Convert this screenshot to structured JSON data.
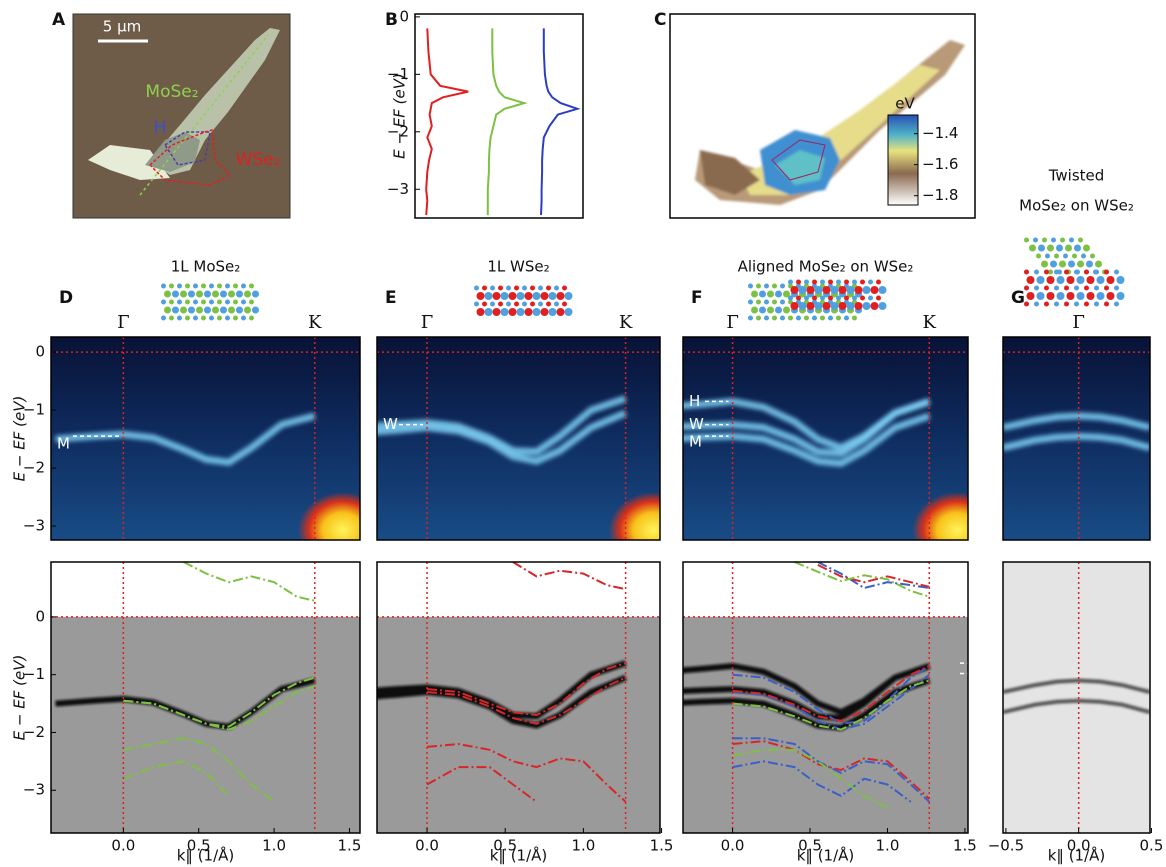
{
  "chart_data": [
    {
      "type": "image",
      "panel": "A",
      "scale_bar": "5 µm",
      "labels": [
        {
          "text": "MoSe₂",
          "color": "#8fd14f"
        },
        {
          "text": "H",
          "color": "#3b4fd0"
        },
        {
          "text": "WSe₂",
          "color": "#e02020"
        }
      ]
    },
    {
      "type": "line",
      "panel": "B",
      "ylabel": "E − EF (eV)",
      "ylim": [
        -3.5,
        0.05
      ],
      "yticks": [
        0,
        {
          "value": -1,
          "label": "−1"
        },
        {
          "value": -2,
          "label": "−2"
        },
        {
          "value": -3,
          "label": "−3"
        }
      ],
      "xlim": [
        0,
        3
      ],
      "energies": [
        -0.2,
        -0.6,
        -1.0,
        -1.2,
        -1.3,
        -1.4,
        -1.5,
        -1.6,
        -1.7,
        -1.9,
        -2.1,
        -2.3,
        -2.5,
        -2.7,
        -3.0,
        -3.2,
        -3.45
      ],
      "series": [
        {
          "color": "#e02020",
          "values": [
            0.22,
            0.24,
            0.28,
            0.45,
            0.95,
            0.5,
            0.3,
            0.28,
            0.26,
            0.3,
            0.22,
            0.3,
            0.25,
            0.22,
            0.2,
            0.22,
            0.2
          ]
        },
        {
          "color": "#7dc142",
          "values": [
            1.38,
            1.38,
            1.4,
            1.45,
            1.5,
            1.6,
            1.95,
            1.6,
            1.45,
            1.4,
            1.35,
            1.33,
            1.32,
            1.32,
            1.3,
            1.3,
            1.3
          ]
        },
        {
          "color": "#2a3fc0",
          "values": [
            2.3,
            2.3,
            2.32,
            2.35,
            2.38,
            2.45,
            2.6,
            2.9,
            2.55,
            2.4,
            2.3,
            2.28,
            2.27,
            2.27,
            2.26,
            2.26,
            2.25
          ]
        }
      ]
    },
    {
      "type": "map",
      "panel": "C",
      "colorbar_label": "eV",
      "clim": [
        -1.86,
        -1.28
      ],
      "cticks": [
        {
          "value": -1.4,
          "label": "−1.4"
        },
        {
          "value": -1.6,
          "label": "−1.6"
        },
        {
          "value": -1.8,
          "label": "−1.8"
        }
      ]
    },
    {
      "type": "arpes",
      "panel": "D",
      "title": [
        "1L MoSe₂"
      ],
      "xlabel": "k‖ (1/Å)",
      "ylabel": "E − EF (eV)",
      "xlim": [
        -0.48,
        1.57
      ],
      "xticks": [
        {
          "value": 0,
          "label": "0.0"
        },
        {
          "value": 0.5,
          "label": "0.5"
        },
        {
          "value": 1,
          "label": "1.0"
        },
        {
          "value": 1.5,
          "label": "1.5"
        }
      ],
      "high_symmetry": [
        {
          "label": "Γ",
          "value": 0
        },
        {
          "label": "K",
          "value": 1.27
        }
      ],
      "fermi_level": 0,
      "upper": {
        "ylim": [
          -3.24,
          0.26
        ],
        "yticks": [
          0,
          {
            "value": -1,
            "label": "−1"
          },
          {
            "value": -2,
            "label": "−2"
          },
          {
            "value": -3,
            "label": "−3"
          }
        ],
        "x": [
          -0.45,
          -0.2,
          0,
          0.2,
          0.4,
          0.55,
          0.7,
          0.85,
          1.05,
          1.27
        ],
        "bands": [
          [
            -1.5,
            -1.45,
            -1.42,
            -1.48,
            -1.68,
            -1.85,
            -1.9,
            -1.65,
            -1.25,
            -1.1
          ]
        ],
        "band_markers": [
          {
            "label": "M",
            "value": -1.45
          }
        ]
      },
      "lower": {
        "ylim": [
          -3.74,
          0.95
        ],
        "yticks": [
          0,
          {
            "value": -1,
            "label": "−1"
          },
          {
            "value": -2,
            "label": "−2"
          },
          {
            "value": -3,
            "label": "−3"
          }
        ],
        "x": [
          0,
          0.2,
          0.4,
          0.55,
          0.7,
          0.85,
          1.0,
          1.15,
          1.27
        ],
        "series": [
          {
            "color": "#7dc142",
            "values": [
              null,
              null,
              0.95,
              0.75,
              0.6,
              0.7,
              0.6,
              0.35,
              0.28
            ]
          },
          {
            "color": "#7dc142",
            "values": [
              -1.45,
              -1.5,
              -1.7,
              -1.85,
              -1.9,
              -1.65,
              -1.35,
              -1.15,
              -1.05
            ]
          },
          {
            "color": "#7dc142",
            "values": [
              -1.45,
              -1.5,
              -1.7,
              -1.85,
              -1.95,
              -1.8,
              -1.55,
              -1.3,
              -1.2
            ]
          },
          {
            "color": "#7dc142",
            "values": [
              -2.3,
              -2.2,
              -2.1,
              -2.2,
              -2.5,
              -2.9,
              -3.2,
              null,
              null
            ]
          },
          {
            "color": "#7dc142",
            "values": [
              -2.8,
              -2.6,
              -2.5,
              -2.7,
              -3.1,
              null,
              null,
              null,
              null
            ]
          }
        ]
      }
    },
    {
      "type": "arpes",
      "panel": "E",
      "title": [
        "1L WSe₂"
      ],
      "xlabel": "k‖ (1/Å)",
      "xlim": [
        -0.32,
        1.49
      ],
      "xticks": [
        {
          "value": 0,
          "label": "0.0"
        },
        {
          "value": 0.5,
          "label": "0.5"
        },
        {
          "value": 1,
          "label": "1.0"
        },
        {
          "value": 1.5,
          "label": "1.5"
        }
      ],
      "high_symmetry": [
        {
          "label": "Γ",
          "value": 0
        },
        {
          "label": "K",
          "value": 1.27
        }
      ],
      "fermi_level": 0,
      "upper": {
        "ylim": [
          -3.24,
          0.26
        ],
        "x": [
          -0.45,
          -0.2,
          0,
          0.2,
          0.4,
          0.55,
          0.7,
          0.85,
          1.05,
          1.27
        ],
        "bands": [
          [
            -1.3,
            -1.25,
            -1.22,
            -1.28,
            -1.48,
            -1.7,
            -1.72,
            -1.45,
            -1.0,
            -0.8
          ],
          [
            -1.4,
            -1.35,
            -1.3,
            -1.36,
            -1.55,
            -1.8,
            -1.88,
            -1.7,
            -1.3,
            -1.05
          ]
        ],
        "band_markers": [
          {
            "label": "W",
            "value": -1.25
          }
        ]
      },
      "lower": {
        "ylim": [
          -3.74,
          0.95
        ],
        "x": [
          0,
          0.2,
          0.4,
          0.55,
          0.7,
          0.85,
          1.0,
          1.15,
          1.27
        ],
        "series": [
          {
            "color": "#d62728",
            "values": [
              null,
              null,
              null,
              0.95,
              0.7,
              0.8,
              0.75,
              0.55,
              0.48
            ]
          },
          {
            "color": "#d62728",
            "values": [
              -1.25,
              -1.3,
              -1.5,
              -1.65,
              -1.7,
              -1.5,
              -1.15,
              -0.9,
              -0.8
            ]
          },
          {
            "color": "#d62728",
            "values": [
              -1.3,
              -1.35,
              -1.55,
              -1.75,
              -1.85,
              -1.7,
              -1.45,
              -1.2,
              -1.05
            ]
          },
          {
            "color": "#d62728",
            "values": [
              -2.25,
              -2.2,
              -2.3,
              -2.5,
              -2.6,
              -2.45,
              -2.5,
              -2.9,
              -3.2
            ]
          },
          {
            "color": "#d62728",
            "values": [
              -2.9,
              -2.6,
              -2.6,
              -2.9,
              -3.2,
              null,
              null,
              null,
              null
            ]
          }
        ]
      }
    },
    {
      "type": "arpes",
      "panel": "F",
      "title": [
        "Aligned MoSe₂ on WSe₂"
      ],
      "xlabel": "k‖ (1/Å)",
      "xlim": [
        -0.32,
        1.52
      ],
      "xticks": [
        {
          "value": 0,
          "label": "0.0"
        },
        {
          "value": 0.5,
          "label": "0.5"
        },
        {
          "value": 1,
          "label": "1.0"
        },
        {
          "value": 1.5,
          "label": "1.5"
        }
      ],
      "high_symmetry": [
        {
          "label": "Γ",
          "value": 0
        },
        {
          "label": "K",
          "value": 1.27
        }
      ],
      "fermi_level": 0,
      "upper": {
        "ylim": [
          -3.24,
          0.26
        ],
        "x": [
          -0.45,
          -0.2,
          0,
          0.2,
          0.4,
          0.55,
          0.7,
          0.85,
          1.05,
          1.27
        ],
        "bands": [
          [
            -0.95,
            -0.9,
            -0.85,
            -0.95,
            -1.2,
            -1.5,
            -1.65,
            -1.45,
            -1.05,
            -0.85
          ],
          [
            -1.3,
            -1.27,
            -1.25,
            -1.3,
            -1.5,
            -1.72,
            -1.75,
            -1.5,
            -1.05,
            -0.85
          ],
          [
            -1.5,
            -1.47,
            -1.45,
            -1.5,
            -1.7,
            -1.88,
            -1.92,
            -1.7,
            -1.3,
            -1.1
          ]
        ],
        "band_markers": [
          {
            "label": "H",
            "value": -0.85
          },
          {
            "label": "W",
            "value": -1.25
          },
          {
            "label": "M",
            "value": -1.45
          }
        ]
      },
      "lower": {
        "ylim": [
          -3.74,
          0.95
        ],
        "x": [
          0,
          0.2,
          0.4,
          0.55,
          0.7,
          0.85,
          1.0,
          1.15,
          1.27
        ],
        "markers": [
          -0.8,
          -0.98
        ],
        "series": [
          {
            "color": "#3a5fc8",
            "values": [
              null,
              null,
              null,
              0.95,
              0.75,
              0.5,
              0.6,
              0.55,
              0.5
            ]
          },
          {
            "color": "#3a5fc8",
            "values": [
              -1.0,
              -1.05,
              -1.3,
              -1.6,
              -1.85,
              -1.8,
              -1.45,
              -1.05,
              -0.85
            ]
          },
          {
            "color": "#3a5fc8",
            "values": [
              -1.3,
              -1.35,
              -1.55,
              -1.8,
              -1.95,
              -1.85,
              -1.55,
              -1.25,
              -1.0
            ]
          },
          {
            "color": "#3a5fc8",
            "values": [
              -2.1,
              -2.1,
              -2.2,
              -2.5,
              -2.7,
              -2.5,
              -2.55,
              -2.9,
              -3.2
            ]
          },
          {
            "color": "#3a5fc8",
            "values": [
              -2.6,
              -2.5,
              -2.6,
              -2.9,
              -3.1,
              -2.8,
              -2.9,
              -3.2,
              null
            ]
          },
          {
            "color": "#d62728",
            "values": [
              null,
              null,
              null,
              0.9,
              0.7,
              0.6,
              0.7,
              0.6,
              0.52
            ]
          },
          {
            "color": "#d62728",
            "values": [
              -1.28,
              -1.33,
              -1.52,
              -1.72,
              -1.8,
              -1.62,
              -1.3,
              -1.0,
              -0.85
            ]
          },
          {
            "color": "#d62728",
            "values": [
              -2.2,
              -2.15,
              -2.3,
              -2.55,
              -2.65,
              -2.45,
              -2.5,
              -2.85,
              -3.15
            ]
          },
          {
            "color": "#7dc142",
            "values": [
              null,
              null,
              0.95,
              0.78,
              0.62,
              0.72,
              0.65,
              0.45,
              0.35
            ]
          },
          {
            "color": "#7dc142",
            "values": [
              -1.5,
              -1.55,
              -1.72,
              -1.88,
              -1.95,
              -1.75,
              -1.45,
              -1.2,
              -1.1
            ]
          },
          {
            "color": "#7dc142",
            "values": [
              -2.4,
              -2.3,
              -2.3,
              -2.5,
              -2.8,
              -3.1,
              -3.3,
              null,
              null
            ]
          }
        ]
      }
    },
    {
      "type": "arpes",
      "panel": "G",
      "title": [
        "Twisted",
        "MoSe₂ on WSe₂"
      ],
      "xlabel": "k‖ (1/Å)",
      "xlim": [
        -0.52,
        0.49
      ],
      "xticks": [
        {
          "value": -0.5,
          "label": "−0.5"
        },
        {
          "value": 0,
          "label": "0.0"
        },
        {
          "value": 0.5,
          "label": "0.5"
        }
      ],
      "high_symmetry": [
        {
          "label": "Γ",
          "value": 0
        }
      ],
      "fermi_level": 0,
      "upper": {
        "ylim": [
          -3.24,
          0.26
        ],
        "x": [
          -0.52,
          -0.3,
          -0.15,
          0,
          0.15,
          0.3,
          0.49
        ],
        "bands": [
          [
            -1.65,
            -1.52,
            -1.47,
            -1.45,
            -1.47,
            -1.52,
            -1.65
          ],
          [
            -1.3,
            -1.18,
            -1.12,
            -1.1,
            -1.12,
            -1.18,
            -1.3
          ]
        ]
      },
      "lower": {
        "ylim": [
          -3.74,
          0.95
        ]
      }
    }
  ]
}
